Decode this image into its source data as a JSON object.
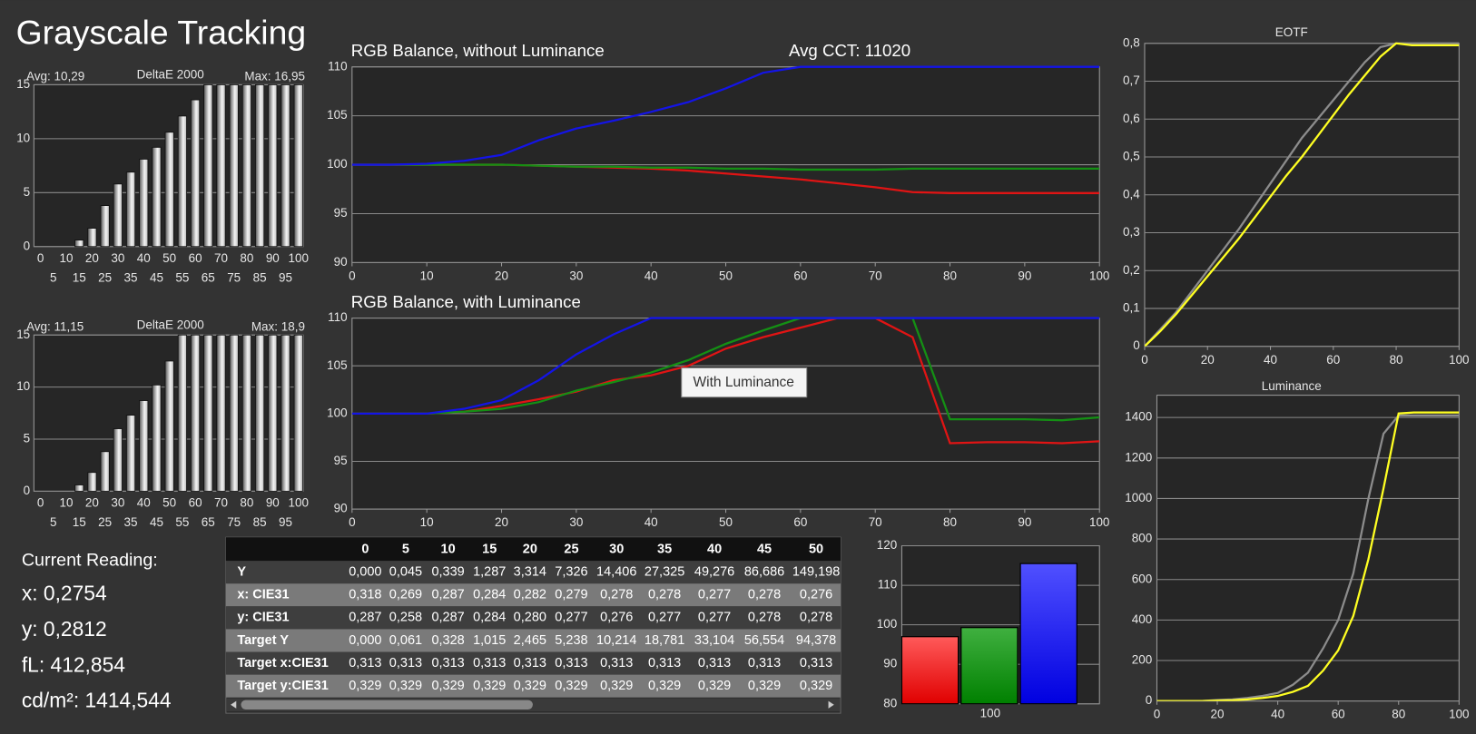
{
  "title": "Grayscale Tracking",
  "avg_cct": "Avg CCT: 11020",
  "delta_charts": [
    {
      "type": "bar",
      "avg": "Avg: 10,29",
      "label": "DeltaE 2000",
      "max": "Max: 16,95",
      "categories": [
        0,
        5,
        10,
        15,
        20,
        25,
        30,
        35,
        40,
        45,
        50,
        55,
        60,
        65,
        70,
        75,
        80,
        85,
        90,
        95,
        100
      ],
      "values": [
        0,
        0,
        0,
        0.6,
        1.7,
        3.8,
        5.8,
        6.9,
        8.1,
        9.2,
        10.6,
        12.1,
        13.6,
        15,
        15,
        15,
        15,
        15,
        15,
        15,
        15
      ],
      "ylim": [
        0,
        15
      ],
      "yticks": [
        0,
        5,
        10,
        15
      ]
    },
    {
      "type": "bar",
      "avg": "Avg: 11,15",
      "label": "DeltaE 2000",
      "max": "Max: 18,9",
      "categories": [
        0,
        5,
        10,
        15,
        20,
        25,
        30,
        35,
        40,
        45,
        50,
        55,
        60,
        65,
        70,
        75,
        80,
        85,
        90,
        95,
        100
      ],
      "values": [
        0,
        0,
        0,
        0.6,
        1.8,
        3.8,
        6,
        7.3,
        8.7,
        10.2,
        12.5,
        15,
        15,
        15,
        15,
        15,
        15,
        15,
        15,
        15,
        15
      ],
      "ylim": [
        0,
        15
      ],
      "yticks": [
        0,
        5,
        10,
        15
      ]
    }
  ],
  "rgb_charts": [
    {
      "type": "line",
      "title": "RGB Balance, without Luminance",
      "x": [
        0,
        5,
        10,
        15,
        20,
        25,
        30,
        35,
        40,
        45,
        50,
        55,
        60,
        65,
        70,
        75,
        80,
        85,
        90,
        95,
        100
      ],
      "series": [
        {
          "name": "Red",
          "color": "#e01414",
          "values": [
            100,
            100,
            100,
            100,
            100,
            99.9,
            99.8,
            99.7,
            99.6,
            99.4,
            99.1,
            98.8,
            98.5,
            98.1,
            97.7,
            97.2,
            97.1,
            97.1,
            97.1,
            97.1,
            97.1
          ]
        },
        {
          "name": "Green",
          "color": "#149014",
          "values": [
            100,
            100,
            100,
            100,
            100,
            99.9,
            99.8,
            99.8,
            99.7,
            99.7,
            99.6,
            99.6,
            99.5,
            99.5,
            99.5,
            99.6,
            99.6,
            99.6,
            99.6,
            99.6,
            99.6
          ]
        },
        {
          "name": "Blue",
          "color": "#1414e6",
          "values": [
            100,
            100,
            100.1,
            100.4,
            101,
            102.5,
            103.7,
            104.5,
            105.4,
            106.4,
            107.8,
            109.4,
            110,
            110,
            110,
            110,
            110,
            110,
            110,
            110,
            110
          ]
        }
      ],
      "xlim": [
        0,
        100
      ],
      "xticks": [
        0,
        10,
        20,
        30,
        40,
        50,
        60,
        70,
        80,
        90,
        100
      ],
      "ylim": [
        90,
        110
      ],
      "yticks": [
        90,
        95,
        100,
        105,
        110
      ]
    },
    {
      "type": "line",
      "title": "RGB Balance, with Luminance",
      "tooltip": "With Luminance",
      "x": [
        0,
        5,
        10,
        15,
        20,
        25,
        30,
        35,
        40,
        45,
        50,
        55,
        60,
        65,
        70,
        75,
        80,
        85,
        90,
        95,
        100
      ],
      "series": [
        {
          "name": "Red",
          "color": "#e01414",
          "values": [
            100,
            100,
            100,
            100.2,
            100.8,
            101.5,
            102.3,
            103.5,
            104,
            105,
            106.8,
            108,
            109,
            110,
            110,
            108,
            96.9,
            97,
            97,
            96.9,
            97.1
          ]
        },
        {
          "name": "Green",
          "color": "#149014",
          "values": [
            100,
            100,
            100,
            100.2,
            100.5,
            101.2,
            102.4,
            103.3,
            104.3,
            105.6,
            107.3,
            108.7,
            110,
            110,
            110,
            110,
            99.4,
            99.4,
            99.4,
            99.3,
            99.6
          ]
        },
        {
          "name": "Blue",
          "color": "#1414e6",
          "values": [
            100,
            100,
            100,
            100.5,
            101.4,
            103.5,
            106.2,
            108.3,
            110,
            110,
            110,
            110,
            110,
            110,
            110,
            110,
            110,
            110,
            110,
            110,
            110
          ]
        }
      ],
      "xlim": [
        0,
        100
      ],
      "xticks": [
        0,
        10,
        20,
        30,
        40,
        50,
        60,
        70,
        80,
        90,
        100
      ],
      "ylim": [
        90,
        110
      ],
      "yticks": [
        90,
        95,
        100,
        105,
        110
      ]
    }
  ],
  "eotf": {
    "type": "line",
    "title": "EOTF",
    "x": [
      0,
      5,
      10,
      15,
      20,
      25,
      30,
      35,
      40,
      45,
      50,
      55,
      60,
      65,
      70,
      75,
      80,
      85,
      90,
      95,
      100
    ],
    "series": [
      {
        "color": "#8c8c8c",
        "values": [
          0,
          0.045,
          0.09,
          0.145,
          0.2,
          0.255,
          0.31,
          0.37,
          0.43,
          0.49,
          0.55,
          0.6,
          0.65,
          0.7,
          0.75,
          0.79,
          0.8,
          0.8,
          0.8,
          0.8,
          0.8
        ]
      },
      {
        "color": "#ffff22",
        "values": [
          0,
          0.04,
          0.085,
          0.135,
          0.185,
          0.235,
          0.285,
          0.34,
          0.395,
          0.45,
          0.5,
          0.555,
          0.61,
          0.665,
          0.715,
          0.765,
          0.8,
          0.795,
          0.795,
          0.795,
          0.795
        ]
      }
    ],
    "xlim": [
      0,
      100
    ],
    "xticks": [
      0,
      20,
      40,
      60,
      80,
      100
    ],
    "ylim": [
      0,
      0.8
    ],
    "yticks": [
      0,
      {
        "value": 0.1,
        "label": "0,1"
      },
      {
        "value": 0.2,
        "label": "0,2"
      },
      {
        "value": 0.3,
        "label": "0,3"
      },
      {
        "value": 0.4,
        "label": "0,4"
      },
      {
        "value": 0.5,
        "label": "0,5"
      },
      {
        "value": 0.6,
        "label": "0,6"
      },
      {
        "value": 0.7,
        "label": "0,7"
      },
      {
        "value": 0.8,
        "label": "0,8"
      }
    ]
  },
  "luminance": {
    "type": "line",
    "title": "Luminance",
    "x": [
      0,
      5,
      10,
      15,
      20,
      25,
      30,
      35,
      40,
      45,
      50,
      55,
      60,
      65,
      70,
      75,
      80,
      85,
      90,
      95,
      100
    ],
    "series": [
      {
        "color": "#8c8c8c",
        "values": [
          0,
          0,
          0,
          0,
          5,
          8,
          15,
          25,
          40,
          80,
          140,
          260,
          400,
          630,
          1000,
          1320,
          1410,
          1410,
          1410,
          1410,
          1410
        ]
      },
      {
        "color": "#ffff22",
        "values": [
          0,
          0,
          0,
          0,
          2,
          4,
          8,
          15,
          25,
          45,
          75,
          150,
          250,
          420,
          700,
          1050,
          1420,
          1425,
          1425,
          1425,
          1425
        ]
      }
    ],
    "xlim": [
      0,
      100
    ],
    "xticks": [
      0,
      20,
      40,
      60,
      80,
      100
    ],
    "ylim": [
      0,
      1510
    ],
    "yticks": [
      0,
      200,
      400,
      600,
      800,
      1000,
      1200,
      1400
    ]
  },
  "reading": {
    "heading": "Current Reading:",
    "lines": [
      "x: 0,2754",
      "y: 0,2812",
      "fL: 412,854",
      "cd/m²: 1414,544"
    ]
  },
  "table": {
    "columns": [
      "0",
      "5",
      "10",
      "15",
      "20",
      "25",
      "30",
      "35",
      "40",
      "45",
      "50"
    ],
    "rows": [
      [
        "Y",
        "0,000",
        "0,045",
        "0,339",
        "1,287",
        "3,314",
        "7,326",
        "14,406",
        "27,325",
        "49,276",
        "86,686",
        "149,198"
      ],
      [
        "x: CIE31",
        "0,318",
        "0,269",
        "0,287",
        "0,284",
        "0,282",
        "0,279",
        "0,278",
        "0,278",
        "0,277",
        "0,278",
        "0,276"
      ],
      [
        "y: CIE31",
        "0,287",
        "0,258",
        "0,287",
        "0,284",
        "0,280",
        "0,277",
        "0,276",
        "0,277",
        "0,277",
        "0,278",
        "0,278"
      ],
      [
        "Target Y",
        "0,000",
        "0,061",
        "0,328",
        "1,015",
        "2,465",
        "5,238",
        "10,214",
        "18,781",
        "33,104",
        "56,554",
        "94,378"
      ],
      [
        "Target x:CIE31",
        "0,313",
        "0,313",
        "0,313",
        "0,313",
        "0,313",
        "0,313",
        "0,313",
        "0,313",
        "0,313",
        "0,313",
        "0,313"
      ],
      [
        "Target y:CIE31",
        "0,329",
        "0,329",
        "0,329",
        "0,329",
        "0,329",
        "0,329",
        "0,329",
        "0,329",
        "0,329",
        "0,329",
        "0,329"
      ]
    ]
  },
  "rgb_bar": {
    "type": "bar",
    "categories": [
      "100"
    ],
    "series": [
      {
        "color": "#ff2a2a",
        "values": [
          97
        ]
      },
      {
        "color": "#22a022",
        "values": [
          99.3
        ]
      },
      {
        "color": "#2a2aff",
        "values": [
          115.5
        ]
      }
    ],
    "ylim": [
      80,
      120
    ],
    "yticks": [
      80,
      90,
      100,
      110,
      120
    ]
  }
}
